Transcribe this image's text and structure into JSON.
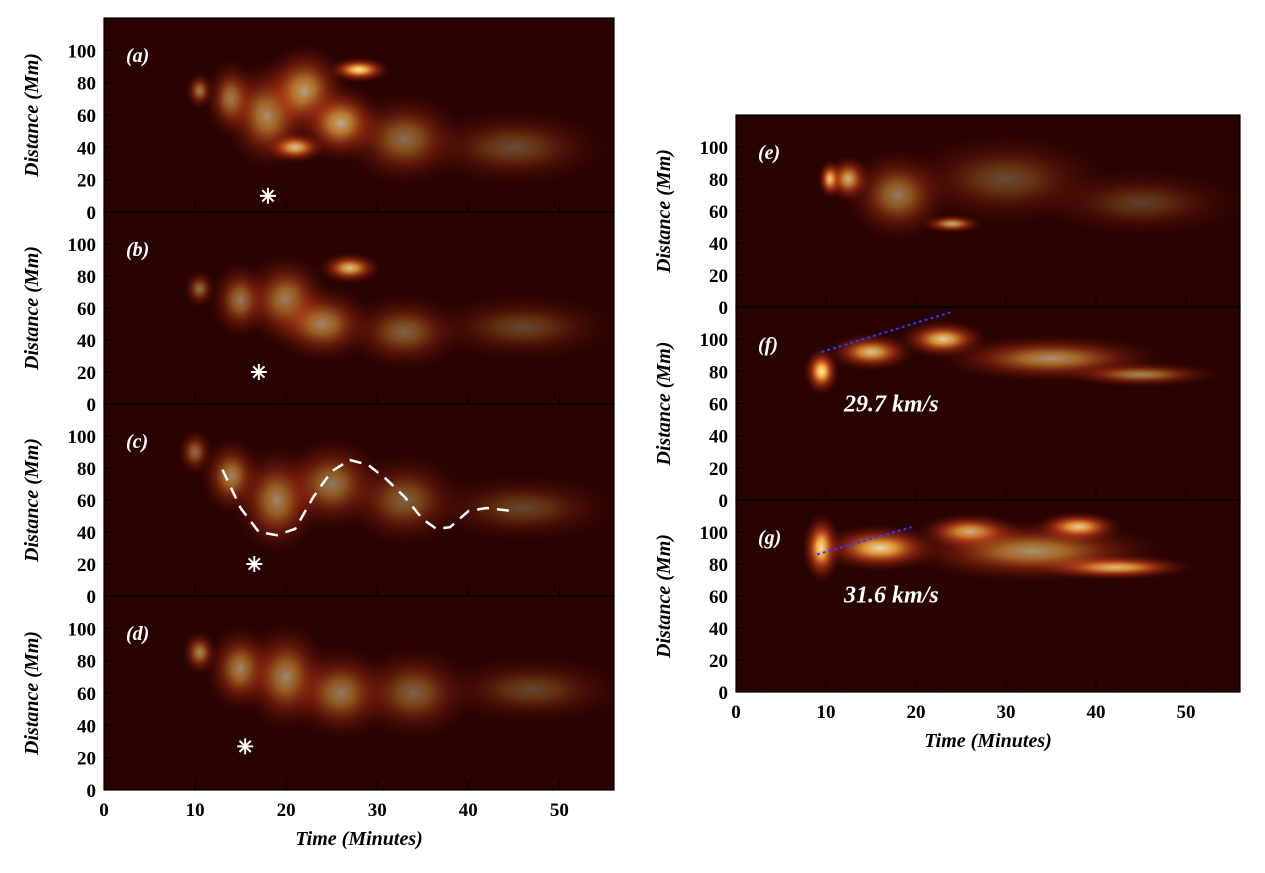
{
  "chart_data": [
    {
      "type": "heatmap",
      "panel_label": "(a)",
      "ylabel": "Distance (Mm)",
      "ylim": [
        0,
        120
      ],
      "yticks": [
        0,
        20,
        40,
        60,
        80,
        100
      ],
      "xlim": [
        0,
        56
      ],
      "xticks": [
        0,
        10,
        20,
        30,
        40,
        50
      ],
      "colormap": "hot-red",
      "marker": {
        "symbol": "asterisk",
        "x": 18,
        "y": 10
      },
      "blobs": [
        {
          "x": 10.5,
          "y": 75,
          "rx": 1.6,
          "ry": 12,
          "i": 0.5
        },
        {
          "x": 14,
          "y": 70,
          "rx": 3,
          "ry": 25,
          "i": 0.55
        },
        {
          "x": 18,
          "y": 60,
          "rx": 5,
          "ry": 35,
          "i": 0.6
        },
        {
          "x": 22,
          "y": 75,
          "rx": 5,
          "ry": 30,
          "i": 0.65
        },
        {
          "x": 28,
          "y": 88,
          "rx": 3.5,
          "ry": 8,
          "i": 0.95
        },
        {
          "x": 26,
          "y": 55,
          "rx": 5,
          "ry": 25,
          "i": 0.7
        },
        {
          "x": 21,
          "y": 40,
          "rx": 3.5,
          "ry": 10,
          "i": 0.8
        },
        {
          "x": 33,
          "y": 45,
          "rx": 7,
          "ry": 30,
          "i": 0.45
        },
        {
          "x": 45,
          "y": 40,
          "rx": 11,
          "ry": 25,
          "i": 0.3
        }
      ]
    },
    {
      "type": "heatmap",
      "panel_label": "(b)",
      "ylabel": "Distance (Mm)",
      "ylim": [
        0,
        120
      ],
      "yticks": [
        0,
        20,
        40,
        60,
        80,
        100
      ],
      "xlim": [
        0,
        56
      ],
      "xticks": [
        0,
        10,
        20,
        30,
        40,
        50
      ],
      "colormap": "hot-red",
      "marker": {
        "symbol": "asterisk",
        "x": 17,
        "y": 20
      },
      "blobs": [
        {
          "x": 10.5,
          "y": 72,
          "rx": 1.8,
          "ry": 12,
          "i": 0.45
        },
        {
          "x": 15,
          "y": 65,
          "rx": 3.5,
          "ry": 25,
          "i": 0.5
        },
        {
          "x": 20,
          "y": 65,
          "rx": 5,
          "ry": 30,
          "i": 0.55
        },
        {
          "x": 27,
          "y": 85,
          "rx": 3.5,
          "ry": 10,
          "i": 0.8
        },
        {
          "x": 24,
          "y": 50,
          "rx": 6,
          "ry": 25,
          "i": 0.55
        },
        {
          "x": 33,
          "y": 45,
          "rx": 7,
          "ry": 25,
          "i": 0.4
        },
        {
          "x": 46,
          "y": 48,
          "rx": 11,
          "ry": 22,
          "i": 0.28
        }
      ]
    },
    {
      "type": "heatmap",
      "panel_label": "(c)",
      "ylabel": "Distance (Mm)",
      "ylim": [
        0,
        120
      ],
      "yticks": [
        0,
        20,
        40,
        60,
        80,
        100
      ],
      "xlim": [
        0,
        56
      ],
      "xticks": [
        0,
        10,
        20,
        30,
        40,
        50
      ],
      "colormap": "hot-red",
      "marker": {
        "symbol": "asterisk",
        "x": 16.5,
        "y": 20
      },
      "trace": {
        "style": "white-dashed",
        "x": [
          13,
          15,
          17,
          19,
          21,
          23,
          25,
          27,
          29,
          31,
          33,
          35,
          36.5,
          38,
          40,
          42,
          45
        ],
        "y": [
          79,
          55,
          40,
          38,
          42,
          62,
          78,
          85,
          82,
          73,
          62,
          48,
          42,
          43,
          53,
          55,
          53
        ]
      },
      "blobs": [
        {
          "x": 10,
          "y": 90,
          "rx": 2,
          "ry": 15,
          "i": 0.45
        },
        {
          "x": 14,
          "y": 75,
          "rx": 3.5,
          "ry": 25,
          "i": 0.55
        },
        {
          "x": 19,
          "y": 60,
          "rx": 5,
          "ry": 35,
          "i": 0.55
        },
        {
          "x": 25,
          "y": 70,
          "rx": 6,
          "ry": 30,
          "i": 0.5
        },
        {
          "x": 33,
          "y": 60,
          "rx": 7,
          "ry": 30,
          "i": 0.4
        },
        {
          "x": 46,
          "y": 55,
          "rx": 11,
          "ry": 22,
          "i": 0.28
        }
      ]
    },
    {
      "type": "heatmap",
      "panel_label": "(d)",
      "ylabel": "Distance (Mm)",
      "ylim": [
        0,
        120
      ],
      "yticks": [
        0,
        20,
        40,
        60,
        80,
        100
      ],
      "xlim": [
        0,
        56
      ],
      "xticks": [
        0,
        10,
        20,
        30,
        40,
        50
      ],
      "xlabel": "Time (Minutes)",
      "colormap": "hot-red",
      "marker": {
        "symbol": "asterisk",
        "x": 15.5,
        "y": 27
      },
      "blobs": [
        {
          "x": 10.5,
          "y": 85,
          "rx": 2,
          "ry": 14,
          "i": 0.55
        },
        {
          "x": 15,
          "y": 75,
          "rx": 4,
          "ry": 28,
          "i": 0.55
        },
        {
          "x": 20,
          "y": 70,
          "rx": 5,
          "ry": 35,
          "i": 0.55
        },
        {
          "x": 26,
          "y": 60,
          "rx": 6,
          "ry": 30,
          "i": 0.5
        },
        {
          "x": 34,
          "y": 60,
          "rx": 7,
          "ry": 30,
          "i": 0.4
        },
        {
          "x": 47,
          "y": 62,
          "rx": 11,
          "ry": 22,
          "i": 0.28
        }
      ]
    },
    {
      "type": "heatmap",
      "panel_label": "(e)",
      "ylabel": "Distance (Mm)",
      "ylim": [
        0,
        120
      ],
      "yticks": [
        0,
        20,
        40,
        60,
        80,
        100
      ],
      "xlim": [
        0,
        56
      ],
      "xticks": [
        0,
        10,
        20,
        30,
        40,
        50
      ],
      "colormap": "hot-red",
      "blobs": [
        {
          "x": 10.5,
          "y": 80,
          "rx": 1.4,
          "ry": 12,
          "i": 1.0
        },
        {
          "x": 12.5,
          "y": 80,
          "rx": 2.5,
          "ry": 15,
          "i": 0.75
        },
        {
          "x": 18,
          "y": 70,
          "rx": 6,
          "ry": 30,
          "i": 0.5
        },
        {
          "x": 24,
          "y": 52,
          "rx": 3.5,
          "ry": 6,
          "i": 0.7
        },
        {
          "x": 30,
          "y": 80,
          "rx": 12,
          "ry": 30,
          "i": 0.3
        },
        {
          "x": 45,
          "y": 65,
          "rx": 12,
          "ry": 22,
          "i": 0.25
        }
      ]
    },
    {
      "type": "heatmap",
      "panel_label": "(f)",
      "ylabel": "Distance (Mm)",
      "ylim": [
        0,
        120
      ],
      "yticks": [
        0,
        20,
        40,
        60,
        80,
        100
      ],
      "xlim": [
        0,
        56
      ],
      "xticks": [
        0,
        10,
        20,
        30,
        40,
        50
      ],
      "colormap": "hot-red",
      "annotation": {
        "text": "29.7 km/s",
        "x": 12,
        "y": 55
      },
      "fit_line": {
        "style": "blue-dotted",
        "x": [
          9.5,
          24
        ],
        "y": [
          92,
          117
        ]
      },
      "blobs": [
        {
          "x": 9.5,
          "y": 80,
          "rx": 2,
          "ry": 15,
          "i": 1.0
        },
        {
          "x": 15,
          "y": 92,
          "rx": 5,
          "ry": 12,
          "i": 0.8
        },
        {
          "x": 23,
          "y": 100,
          "rx": 5,
          "ry": 12,
          "i": 0.85
        },
        {
          "x": 35,
          "y": 88,
          "rx": 13,
          "ry": 15,
          "i": 0.6
        },
        {
          "x": 45,
          "y": 78,
          "rx": 9,
          "ry": 8,
          "i": 0.55
        }
      ]
    },
    {
      "type": "heatmap",
      "panel_label": "(g)",
      "ylabel": "Distance (Mm)",
      "ylim": [
        0,
        120
      ],
      "yticks": [
        0,
        20,
        40,
        60,
        80,
        100
      ],
      "xlim": [
        0,
        56
      ],
      "xticks": [
        0,
        10,
        20,
        30,
        40,
        50
      ],
      "xlabel": "Time (Minutes)",
      "colormap": "hot-red",
      "annotation": {
        "text": "31.6 km/s",
        "x": 12,
        "y": 56
      },
      "fit_line": {
        "style": "blue-dotted",
        "x": [
          9,
          19.5
        ],
        "y": [
          86,
          103
        ]
      },
      "blobs": [
        {
          "x": 9.5,
          "y": 90,
          "rx": 2.2,
          "ry": 22,
          "i": 1.0
        },
        {
          "x": 16,
          "y": 90,
          "rx": 7,
          "ry": 15,
          "i": 0.9
        },
        {
          "x": 26,
          "y": 100,
          "rx": 6,
          "ry": 12,
          "i": 0.85
        },
        {
          "x": 38,
          "y": 103,
          "rx": 5,
          "ry": 10,
          "i": 0.95
        },
        {
          "x": 42,
          "y": 78,
          "rx": 9,
          "ry": 8,
          "i": 0.9
        },
        {
          "x": 33,
          "y": 88,
          "rx": 15,
          "ry": 20,
          "i": 0.6
        }
      ]
    }
  ]
}
